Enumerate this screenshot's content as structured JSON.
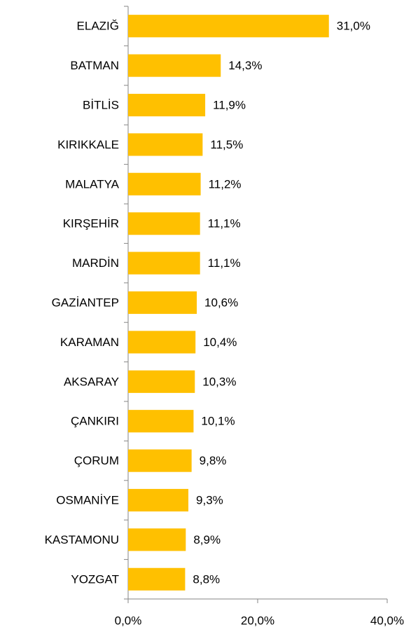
{
  "chart_data": {
    "type": "bar",
    "orientation": "horizontal",
    "categories": [
      "ELAZIĞ",
      "BATMAN",
      "BİTLİS",
      "KIRIKKALE",
      "MALATYA",
      "KIRŞEHİR",
      "MARDİN",
      "GAZİANTEP",
      "KARAMAN",
      "AKSARAY",
      "ÇANKIRI",
      "ÇORUM",
      "OSMANİYE",
      "KASTAMONU",
      "YOZGAT"
    ],
    "values": [
      31.0,
      14.3,
      11.9,
      11.5,
      11.2,
      11.1,
      11.1,
      10.6,
      10.4,
      10.3,
      10.1,
      9.8,
      9.3,
      8.9,
      8.8
    ],
    "value_labels": [
      "31,0%",
      "14,3%",
      "11,9%",
      "11,5%",
      "11,2%",
      "11,1%",
      "11,1%",
      "10,6%",
      "10,4%",
      "10,3%",
      "10,1%",
      "9,8%",
      "9,3%",
      "8,9%",
      "8,8%"
    ],
    "color": "#ffc000",
    "xlim": [
      0,
      40
    ],
    "xticks": [
      {
        "value": 0,
        "label": "0,0%"
      },
      {
        "value": 20,
        "label": "20,0%"
      },
      {
        "value": 40,
        "label": "40,0%"
      }
    ],
    "grid": false
  }
}
